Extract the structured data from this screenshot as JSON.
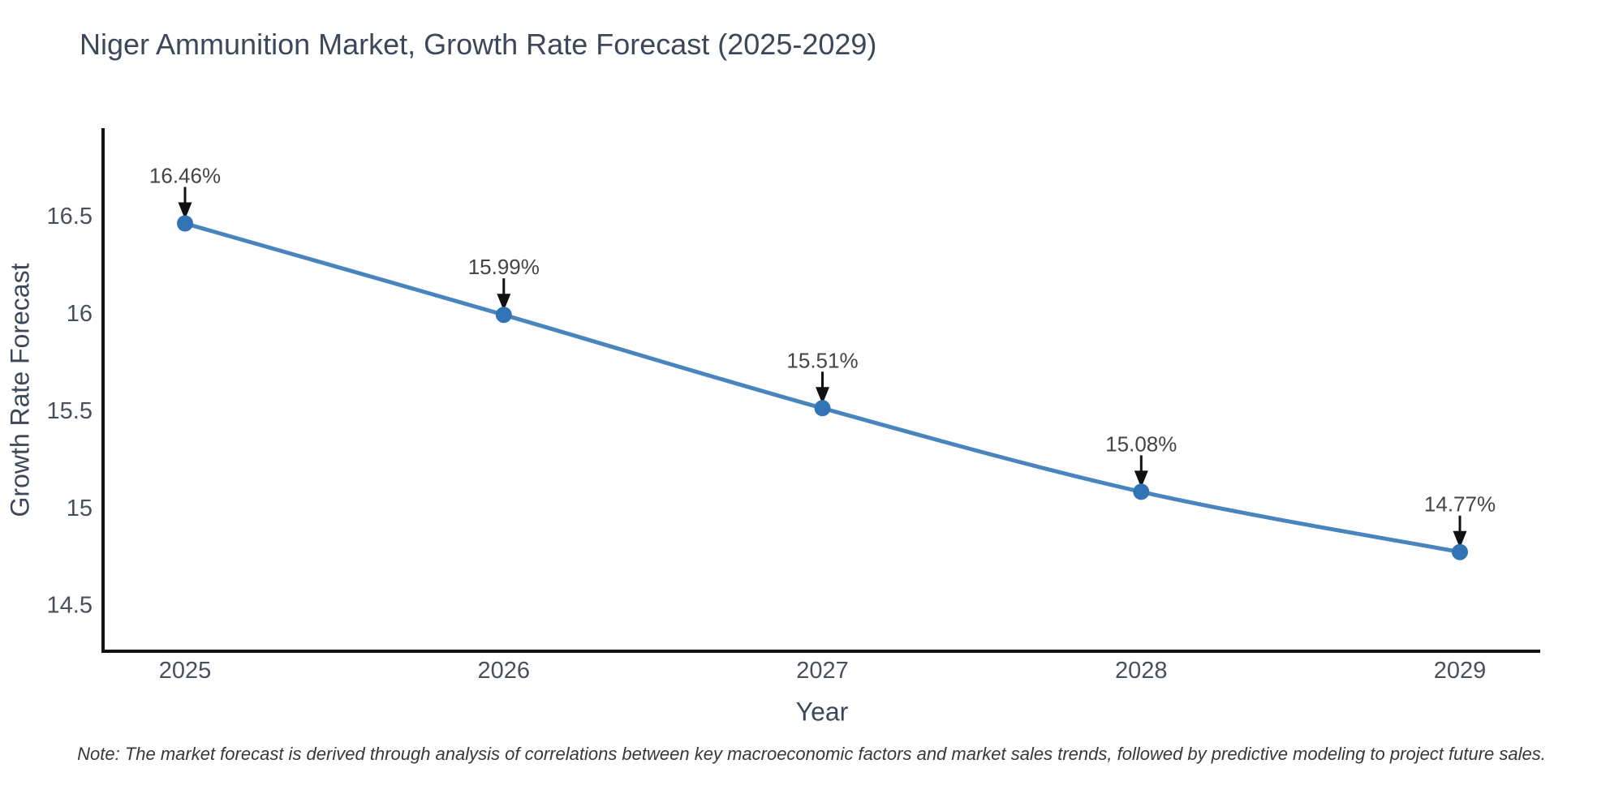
{
  "chart_data": {
    "type": "line",
    "title": "Niger Ammunition Market, Growth Rate Forecast (2025-2029)",
    "xlabel": "Year",
    "ylabel": "Growth Rate Forecast",
    "x": [
      2025,
      2026,
      2027,
      2028,
      2029
    ],
    "series": [
      {
        "name": "Growth Rate Forecast",
        "values": [
          16.46,
          15.99,
          15.51,
          15.08,
          14.77
        ]
      }
    ],
    "point_labels": [
      "16.46%",
      "15.99%",
      "15.51%",
      "15.08%",
      "14.77%"
    ],
    "xtick_labels": [
      "2025",
      "2026",
      "2027",
      "2028",
      "2029"
    ],
    "yticks": [
      14.5,
      15,
      15.5,
      16,
      16.5
    ],
    "ytick_labels": [
      "14.5",
      "15",
      "15.5",
      "16",
      "16.5"
    ],
    "ylim": [
      14.26,
      16.95
    ],
    "grid": false,
    "legend": "none",
    "smooth": true,
    "colors": {
      "line": "#4884bd",
      "marker": "#3173b4",
      "axis": "#111111",
      "tick_text": "#4a505a",
      "annotation_text": "#444444",
      "annotation_arrow": "#111111",
      "title_text": "#3c4859"
    },
    "note": "Note: The market forecast is derived through analysis of correlations between key macroeconomic factors and market sales trends, followed by predictive modeling to project future sales."
  }
}
